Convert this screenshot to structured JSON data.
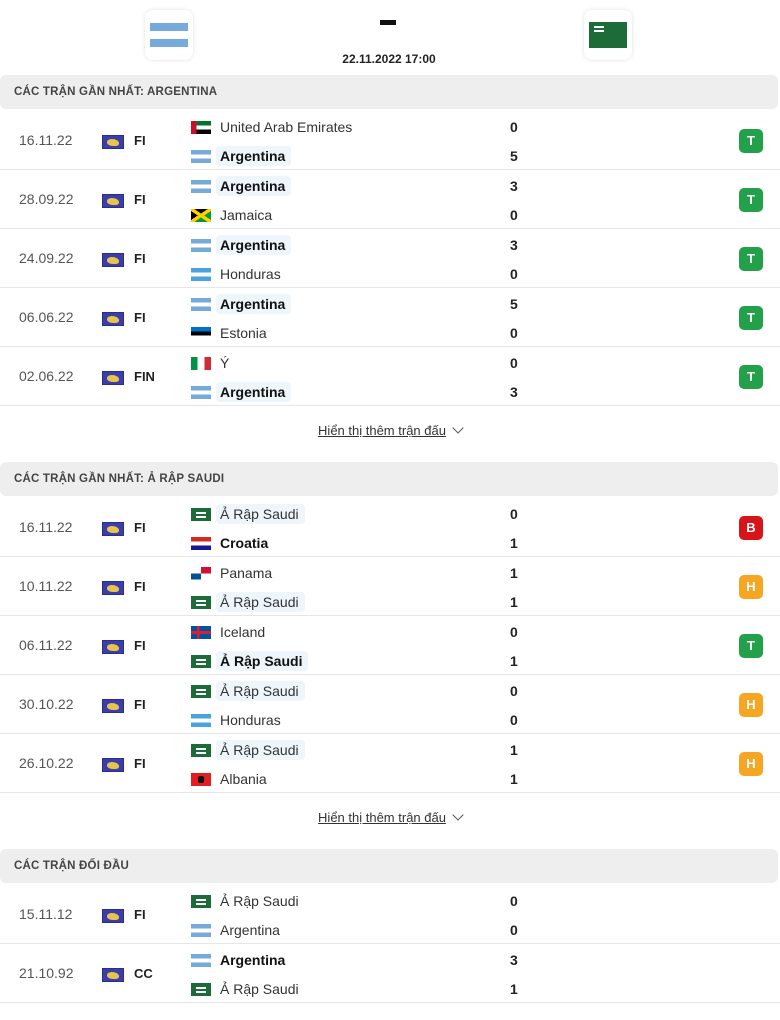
{
  "match": {
    "home": "Argentina",
    "away": "Ả Rập Saudi",
    "home_flag": "arg",
    "away_flag": "ksa",
    "score": "-",
    "datetime": "22.11.2022 17:00"
  },
  "colors": {
    "T": "#23a04a",
    "B": "#d7141a",
    "H": "#f5a623"
  },
  "sections": [
    {
      "title": "CÁC TRẬN GẦN NHẤT: ARGENTINA",
      "more": "Hiển thị thêm trận đấu",
      "matches": [
        {
          "date": "16.11.22",
          "comp": "FI",
          "home": {
            "name": "United Arab Emirates",
            "flag": "uae",
            "score": "0",
            "bold": false,
            "hl": false
          },
          "away": {
            "name": "Argentina",
            "flag": "arg",
            "score": "5",
            "bold": true,
            "hl": true
          },
          "result": "T"
        },
        {
          "date": "28.09.22",
          "comp": "FI",
          "home": {
            "name": "Argentina",
            "flag": "arg",
            "score": "3",
            "bold": true,
            "hl": true
          },
          "away": {
            "name": "Jamaica",
            "flag": "jam",
            "score": "0",
            "bold": false,
            "hl": false
          },
          "result": "T"
        },
        {
          "date": "24.09.22",
          "comp": "FI",
          "home": {
            "name": "Argentina",
            "flag": "arg",
            "score": "3",
            "bold": true,
            "hl": true
          },
          "away": {
            "name": "Honduras",
            "flag": "hon",
            "score": "0",
            "bold": false,
            "hl": false
          },
          "result": "T"
        },
        {
          "date": "06.06.22",
          "comp": "FI",
          "home": {
            "name": "Argentina",
            "flag": "arg",
            "score": "5",
            "bold": true,
            "hl": true
          },
          "away": {
            "name": "Estonia",
            "flag": "est",
            "score": "0",
            "bold": false,
            "hl": false
          },
          "result": "T"
        },
        {
          "date": "02.06.22",
          "comp": "FIN",
          "home": {
            "name": "Ý",
            "flag": "ita",
            "score": "0",
            "bold": false,
            "hl": false
          },
          "away": {
            "name": "Argentina",
            "flag": "arg",
            "score": "3",
            "bold": true,
            "hl": true
          },
          "result": "T"
        }
      ]
    },
    {
      "title": "CÁC TRẬN GẦN NHẤT: Ả RẬP SAUDI",
      "more": "Hiển thị thêm trận đấu",
      "matches": [
        {
          "date": "16.11.22",
          "comp": "FI",
          "home": {
            "name": "Ả Rập Saudi",
            "flag": "ksa",
            "score": "0",
            "bold": false,
            "hl": true
          },
          "away": {
            "name": "Croatia",
            "flag": "cro",
            "score": "1",
            "bold": true,
            "hl": false
          },
          "result": "B"
        },
        {
          "date": "10.11.22",
          "comp": "FI",
          "home": {
            "name": "Panama",
            "flag": "pan",
            "score": "1",
            "bold": false,
            "hl": false
          },
          "away": {
            "name": "Ả Rập Saudi",
            "flag": "ksa",
            "score": "1",
            "bold": false,
            "hl": true
          },
          "result": "H"
        },
        {
          "date": "06.11.22",
          "comp": "FI",
          "home": {
            "name": "Iceland",
            "flag": "isl",
            "score": "0",
            "bold": false,
            "hl": false
          },
          "away": {
            "name": "Ả Rập Saudi",
            "flag": "ksa",
            "score": "1",
            "bold": true,
            "hl": true
          },
          "result": "T"
        },
        {
          "date": "30.10.22",
          "comp": "FI",
          "home": {
            "name": "Ả Rập Saudi",
            "flag": "ksa",
            "score": "0",
            "bold": false,
            "hl": true
          },
          "away": {
            "name": "Honduras",
            "flag": "hon",
            "score": "0",
            "bold": false,
            "hl": false
          },
          "result": "H"
        },
        {
          "date": "26.10.22",
          "comp": "FI",
          "home": {
            "name": "Ả Rập Saudi",
            "flag": "ksa",
            "score": "1",
            "bold": false,
            "hl": true
          },
          "away": {
            "name": "Albania",
            "flag": "alb",
            "score": "1",
            "bold": false,
            "hl": false
          },
          "result": "H"
        }
      ]
    },
    {
      "title": "CÁC TRẬN ĐỐI ĐẦU",
      "matches": [
        {
          "date": "15.11.12",
          "comp": "FI",
          "home": {
            "name": "Ả Rập Saudi",
            "flag": "ksa",
            "score": "0",
            "bold": false,
            "hl": false
          },
          "away": {
            "name": "Argentina",
            "flag": "arg",
            "score": "0",
            "bold": false,
            "hl": false
          }
        },
        {
          "date": "21.10.92",
          "comp": "CC",
          "home": {
            "name": "Argentina",
            "flag": "arg",
            "score": "3",
            "bold": true,
            "hl": false
          },
          "away": {
            "name": "Ả Rập Saudi",
            "flag": "ksa",
            "score": "1",
            "bold": false,
            "hl": false
          }
        }
      ]
    }
  ]
}
